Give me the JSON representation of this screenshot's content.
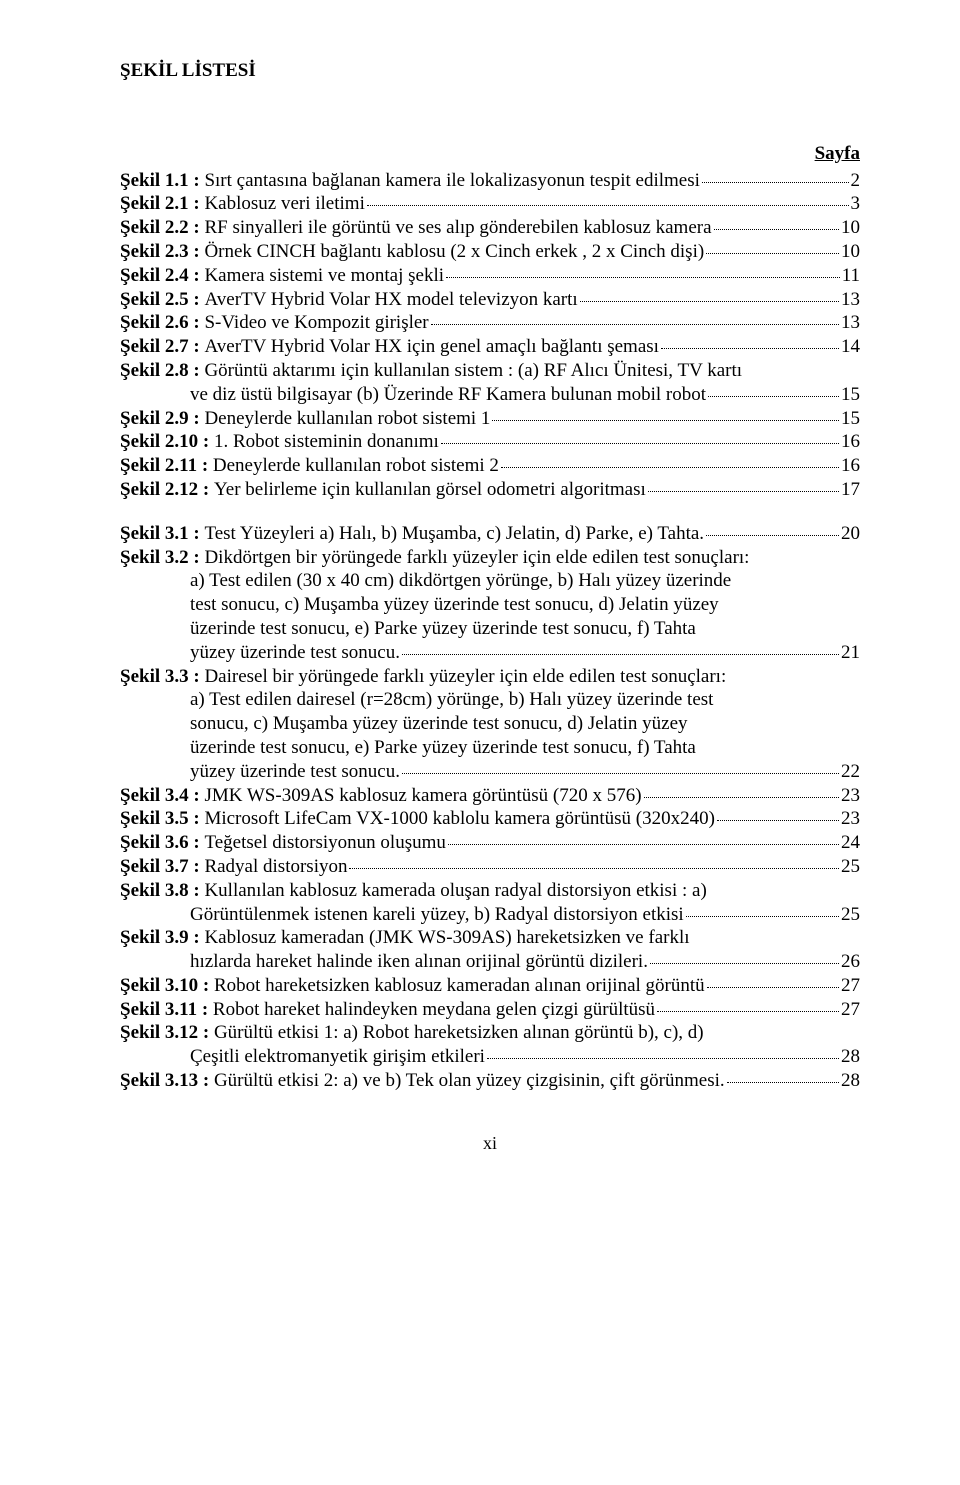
{
  "title": "ŞEKİL LİSTESİ",
  "pageLabel": "Sayfa",
  "pageNumber": "xi",
  "entries": [
    {
      "label": "Şekil 1.1 :",
      "lines": [
        "Sırt çantasına bağlanan kamera ile lokalizasyonun tespit edilmesi"
      ],
      "page": "2"
    },
    {
      "label": "Şekil 2.1 :",
      "lines": [
        "Kablosuz  veri  iletimi"
      ],
      "page": "3"
    },
    {
      "label": "Şekil 2.2 :",
      "lines": [
        "RF sinyalleri ile görüntü ve ses alıp gönderebilen kablosuz kamera"
      ],
      "page": "10"
    },
    {
      "label": "Şekil 2.3 :",
      "lines": [
        "Örnek CINCH bağlantı kablosu (2 x Cinch erkek , 2 x Cinch dişi)"
      ],
      "page": "10"
    },
    {
      "label": "Şekil 2.4 :",
      "lines": [
        "Kamera sistemi ve montaj şekli"
      ],
      "page": "11"
    },
    {
      "label": "Şekil 2.5 :",
      "lines": [
        "AverTV Hybrid Volar HX model televizyon kartı"
      ],
      "page": "13"
    },
    {
      "label": "Şekil 2.6 :",
      "lines": [
        "S-Video ve Kompozit girişler"
      ],
      "page": "13"
    },
    {
      "label": "Şekil 2.7 :",
      "lines": [
        "AverTV Hybrid Volar HX için genel amaçlı bağlantı şeması"
      ],
      "page": "14"
    },
    {
      "label": "Şekil 2.8 :",
      "lines": [
        "Görüntü aktarımı için kullanılan sistem : (a) RF Alıcı Ünitesi, TV kartı",
        "ve diz üstü bilgisayar (b) Üzerinde RF Kamera bulunan mobil robot"
      ],
      "page": "15"
    },
    {
      "label": "Şekil 2.9 :",
      "lines": [
        "Deneylerde kullanılan robot sistemi 1"
      ],
      "page": "15"
    },
    {
      "label": "Şekil 2.10 :",
      "lines": [
        "1. Robot sisteminin donanımı"
      ],
      "page": "16"
    },
    {
      "label": "Şekil 2.11 :",
      "lines": [
        "Deneylerde kullanılan robot sistemi 2"
      ],
      "page": "16"
    },
    {
      "label": "Şekil 2.12 :",
      "lines": [
        "Yer belirleme için kullanılan görsel odometri algoritması"
      ],
      "page": "17"
    },
    {
      "gap": true
    },
    {
      "label": "Şekil 3.1 :",
      "lines": [
        "Test Yüzeyleri a) Halı, b) Muşamba, c) Jelatin, d) Parke, e) Tahta."
      ],
      "page": "20"
    },
    {
      "label": "Şekil 3.2 :",
      "lines": [
        "Dikdörtgen bir yörüngede farklı yüzeyler için elde edilen test sonuçları:",
        "a) Test edilen (30 x 40 cm) dikdörtgen yörünge, b) Halı yüzey üzerinde",
        "test sonucu, c) Muşamba yüzey üzerinde test sonucu, d) Jelatin yüzey",
        "üzerinde test sonucu, e) Parke yüzey üzerinde test sonucu, f) Tahta",
        "yüzey üzerinde test sonucu."
      ],
      "page": "21"
    },
    {
      "label": "Şekil 3.3 :",
      "lines": [
        "Dairesel bir yörüngede farklı yüzeyler için elde edilen test sonuçları:",
        "a) Test edilen dairesel (r=28cm) yörünge, b) Halı yüzey üzerinde test",
        "sonucu, c) Muşamba yüzey üzerinde test sonucu, d) Jelatin yüzey",
        "üzerinde test sonucu, e) Parke yüzey üzerinde test sonucu, f) Tahta",
        "yüzey üzerinde test sonucu."
      ],
      "page": "22"
    },
    {
      "label": "Şekil 3.4 :",
      "lines": [
        "JMK WS-309AS kablosuz kamera görüntüsü (720 x 576)"
      ],
      "page": "23"
    },
    {
      "label": "Şekil 3.5 :",
      "lines": [
        "Microsoft LifeCam VX-1000 kablolu kamera görüntüsü (320x240)"
      ],
      "page": "23"
    },
    {
      "label": "Şekil 3.6 :",
      "lines": [
        "Teğetsel distorsiyonun oluşumu"
      ],
      "page": "24"
    },
    {
      "label": "Şekil 3.7 :",
      "lines": [
        "Radyal distorsiyon"
      ],
      "page": "25"
    },
    {
      "label": "Şekil 3.8 :",
      "lines": [
        "Kullanılan kablosuz kamerada oluşan radyal distorsiyon etkisi   :   a)",
        "Görüntülenmek istenen kareli yüzey,   b) Radyal distorsiyon etkisi"
      ],
      "page": "25"
    },
    {
      "label": "Şekil 3.9 :",
      "lines": [
        "Kablosuz kameradan (JMK WS-309AS) hareketsizken ve farklı",
        "hızlarda hareket halinde iken alınan orijinal görüntü dizileri."
      ],
      "page": "26"
    },
    {
      "label": "Şekil 3.10 :",
      "lines": [
        "Robot hareketsizken kablosuz kameradan alınan orijinal görüntü"
      ],
      "page": "27"
    },
    {
      "label": "Şekil 3.11 :",
      "lines": [
        "Robot hareket halindeyken meydana gelen çizgi gürültüsü"
      ],
      "page": "27"
    },
    {
      "label": "Şekil 3.12 :",
      "lines": [
        "Gürültü etkisi 1: a) Robot hareketsizken alınan görüntü   b), c),    d)",
        "Çeşitli elektromanyetik girişim etkileri"
      ],
      "page": "28"
    },
    {
      "label": "Şekil 3.13 :",
      "lines": [
        "Gürültü etkisi 2: a) ve b) Tek olan yüzey çizgisinin, çift görünmesi."
      ],
      "page": "28"
    }
  ]
}
